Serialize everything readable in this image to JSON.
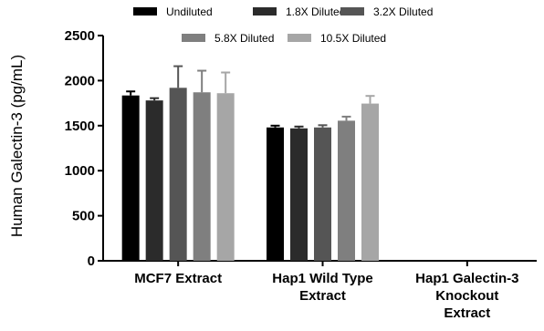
{
  "chart_data": {
    "type": "bar",
    "ylabel": "Human Galectin-3 (pg/mL)",
    "ylim": [
      0,
      2500
    ],
    "yticks": [
      0,
      500,
      1000,
      1500,
      2000,
      2500
    ],
    "categories": [
      [
        "MCF7 Extract"
      ],
      [
        "Hap1 Wild Type",
        "Extract"
      ],
      [
        "Hap1 Galectin-3",
        "Knockout",
        "Extract"
      ]
    ],
    "series": [
      {
        "name": "Undiluted",
        "color": "#000000",
        "values": [
          1835,
          1480,
          null
        ],
        "errors": [
          45,
          20,
          null
        ]
      },
      {
        "name": "1.8X Diluted",
        "color": "#2b2b2b",
        "values": [
          1780,
          1470,
          null
        ],
        "errors": [
          25,
          20,
          null
        ]
      },
      {
        "name": "3.2X Diluted",
        "color": "#555555",
        "values": [
          1920,
          1480,
          null
        ],
        "errors": [
          240,
          25,
          null
        ]
      },
      {
        "name": "5.8X Diluted",
        "color": "#7f7f7f",
        "values": [
          1870,
          1555,
          null
        ],
        "errors": [
          240,
          45,
          null
        ]
      },
      {
        "name": "10.5X Diluted",
        "color": "#a6a6a6",
        "values": [
          1860,
          1745,
          null
        ],
        "errors": [
          230,
          85,
          null
        ]
      }
    ],
    "legend": "top"
  }
}
